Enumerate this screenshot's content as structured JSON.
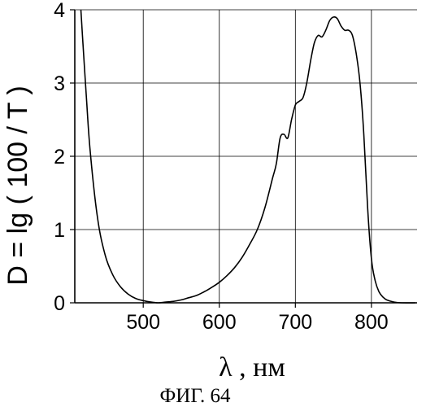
{
  "chart_data": {
    "type": "line",
    "title": "",
    "xlabel": "λ , нм",
    "ylabel": "D = lg ( 100 / T )",
    "xlim": [
      410,
      860
    ],
    "ylim": [
      0,
      4
    ],
    "xticks": [
      "500",
      "600",
      "700",
      "800"
    ],
    "yticks": [
      "0",
      "1",
      "2",
      "3",
      "4"
    ],
    "grid": true,
    "series": [
      {
        "x": [
          418,
          420,
          425,
          430,
          440,
          450,
          460,
          470,
          480,
          490,
          500,
          510,
          520,
          530,
          540,
          550,
          560,
          570,
          580,
          590,
          600,
          610,
          620,
          630,
          640,
          650,
          660,
          670,
          675,
          680,
          685,
          690,
          695,
          700,
          705,
          710,
          715,
          720,
          725,
          730,
          735,
          740,
          745,
          750,
          755,
          760,
          765,
          770,
          775,
          780,
          785,
          790,
          795,
          800,
          805,
          810,
          815,
          820,
          830,
          840,
          858
        ],
        "y": [
          4.0,
          3.65,
          2.85,
          2.1,
          1.15,
          0.65,
          0.38,
          0.22,
          0.12,
          0.06,
          0.03,
          0.01,
          0.0,
          0.01,
          0.02,
          0.04,
          0.07,
          0.1,
          0.15,
          0.21,
          0.28,
          0.37,
          0.48,
          0.62,
          0.8,
          1.0,
          1.3,
          1.7,
          1.9,
          2.25,
          2.3,
          2.25,
          2.5,
          2.7,
          2.75,
          2.8,
          3.0,
          3.3,
          3.55,
          3.65,
          3.63,
          3.72,
          3.85,
          3.9,
          3.88,
          3.78,
          3.72,
          3.72,
          3.65,
          3.4,
          3.0,
          2.3,
          1.3,
          0.6,
          0.3,
          0.15,
          0.08,
          0.04,
          0.01,
          0.0,
          0.0
        ]
      }
    ]
  },
  "figure": {
    "caption": "ФИГ. 64"
  }
}
